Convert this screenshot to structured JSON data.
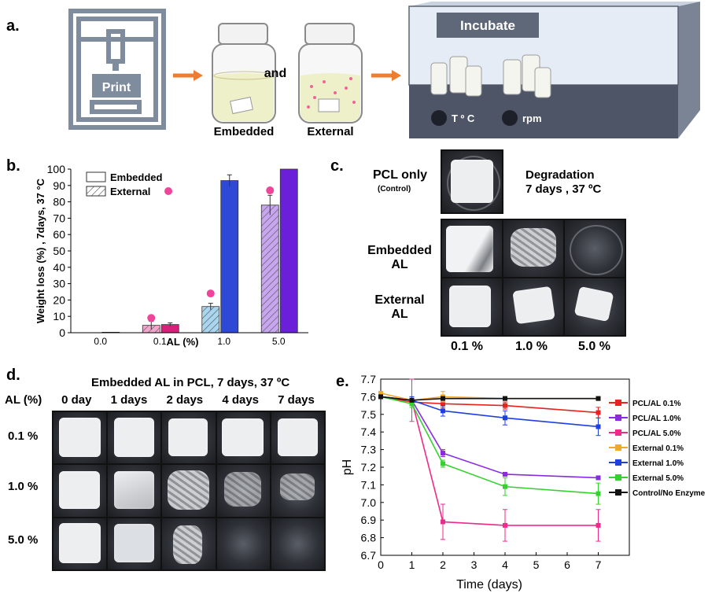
{
  "panel_a": {
    "label": "a.",
    "print_label": "Print",
    "and_label": "and",
    "embedded_label": "Embedded",
    "external_label": "External",
    "incubate_label": "Incubate",
    "temp_label": "T º C",
    "rpm_label": "rpm",
    "colors": {
      "arrow": "#ed7d31",
      "printer": "#7f8c9d",
      "incubator": "#4d5566",
      "embedded_fill": "#eef0c9",
      "dot": "#f0649a"
    }
  },
  "panel_b": {
    "label": "b.",
    "legend_embedded": "Embedded",
    "legend_external": "External",
    "chart_data": {
      "type": "bar",
      "ylabel": "Weight loss (%) , 7days, 37 °C",
      "xlabel": "AL (%)",
      "ylim": [
        0,
        100
      ],
      "yticks": [
        0,
        10,
        20,
        30,
        40,
        50,
        60,
        70,
        80,
        90,
        100
      ],
      "categories": [
        "0.0",
        "0.1",
        "1.0",
        "5.0"
      ],
      "series": [
        {
          "name": "Embedded",
          "values": [
            0,
            5,
            93,
            100
          ],
          "errors": [
            0,
            1,
            3.5,
            0
          ],
          "colors": [
            "#ffffff",
            "#d6207a",
            "#2e49d6",
            "#6a1fd9"
          ]
        },
        {
          "name": "External",
          "values": [
            null,
            4.5,
            16,
            78
          ],
          "errors": [
            0,
            2.5,
            2,
            6
          ],
          "colors": [
            "#ffffff",
            "#f3a6cd",
            "#a9d6ee",
            "#c7a6ef"
          ]
        }
      ],
      "markers": [
        {
          "category": "0.1",
          "y": 9
        },
        {
          "category": "1.0",
          "y": 24
        },
        {
          "category": "5.0",
          "y": 87
        }
      ],
      "marker_color": "#f0449a"
    }
  },
  "panel_c": {
    "label": "c.",
    "pcl_only": "PCL only",
    "control": "(Control)",
    "degradation": "Degradation",
    "degradation_sub": "7 days , 37 ºC",
    "row_embedded": [
      "Embedded",
      "AL"
    ],
    "row_external": [
      "External",
      "AL"
    ],
    "cols": [
      "0.1 %",
      "1.0 %",
      "5.0 %"
    ]
  },
  "panel_d": {
    "label": "d.",
    "title": "Embedded AL in PCL, 7 days, 37 ºC",
    "al_header": "AL (%)",
    "day_headers": [
      "0 day",
      "1 days",
      "2 days",
      "4 days",
      "7 days"
    ],
    "rows": [
      "0.1 %",
      "1.0 %",
      "5.0 %"
    ]
  },
  "panel_e": {
    "label": "e.",
    "chart_data": {
      "type": "line",
      "xlabel": "Time (days)",
      "ylabel": "pH",
      "xlim": [
        0,
        8
      ],
      "ylim": [
        6.7,
        7.7
      ],
      "xticks": [
        0,
        1,
        2,
        3,
        4,
        5,
        6,
        7
      ],
      "yticks": [
        6.7,
        6.8,
        6.9,
        7.0,
        7.1,
        7.2,
        7.3,
        7.4,
        7.5,
        7.6,
        7.7
      ],
      "x": [
        0,
        1,
        2,
        4,
        7
      ],
      "series": [
        {
          "name": "PCL/AL 0.1%",
          "color": "#e8231f",
          "values": [
            7.6,
            7.57,
            7.56,
            7.55,
            7.51
          ],
          "errors": [
            0.01,
            0.02,
            0.02,
            0.02,
            0.03
          ]
        },
        {
          "name": "PCL/AL 1.0%",
          "color": "#8a2be2",
          "values": [
            7.6,
            7.58,
            7.28,
            7.16,
            7.14
          ],
          "errors": [
            0.01,
            0.02,
            0.02,
            0.01,
            0.01
          ]
        },
        {
          "name": "PCL/AL 5.0%",
          "color": "#ef2a8c",
          "values": [
            7.6,
            7.58,
            6.89,
            6.87,
            6.87
          ],
          "errors": [
            0.01,
            0.12,
            0.1,
            0.09,
            0.09
          ]
        },
        {
          "name": "External 0.1%",
          "color": "#f0a830",
          "values": [
            7.62,
            7.58,
            7.6,
            7.59,
            7.59
          ],
          "errors": [
            0.01,
            0.02,
            0.03,
            0.01,
            0.01
          ]
        },
        {
          "name": "External 1.0%",
          "color": "#1f3fe0",
          "values": [
            7.6,
            7.58,
            7.52,
            7.48,
            7.43
          ],
          "errors": [
            0.01,
            0.02,
            0.03,
            0.04,
            0.05
          ]
        },
        {
          "name": "External 5.0%",
          "color": "#35d22f",
          "values": [
            7.6,
            7.56,
            7.22,
            7.09,
            7.05
          ],
          "errors": [
            0.01,
            0.02,
            0.02,
            0.05,
            0.06
          ]
        },
        {
          "name": "Control/No Enzyme",
          "color": "#111111",
          "values": [
            7.6,
            7.58,
            7.59,
            7.59,
            7.59
          ],
          "errors": [
            0.01,
            0.01,
            0.01,
            0.01,
            0.01
          ]
        }
      ]
    }
  }
}
